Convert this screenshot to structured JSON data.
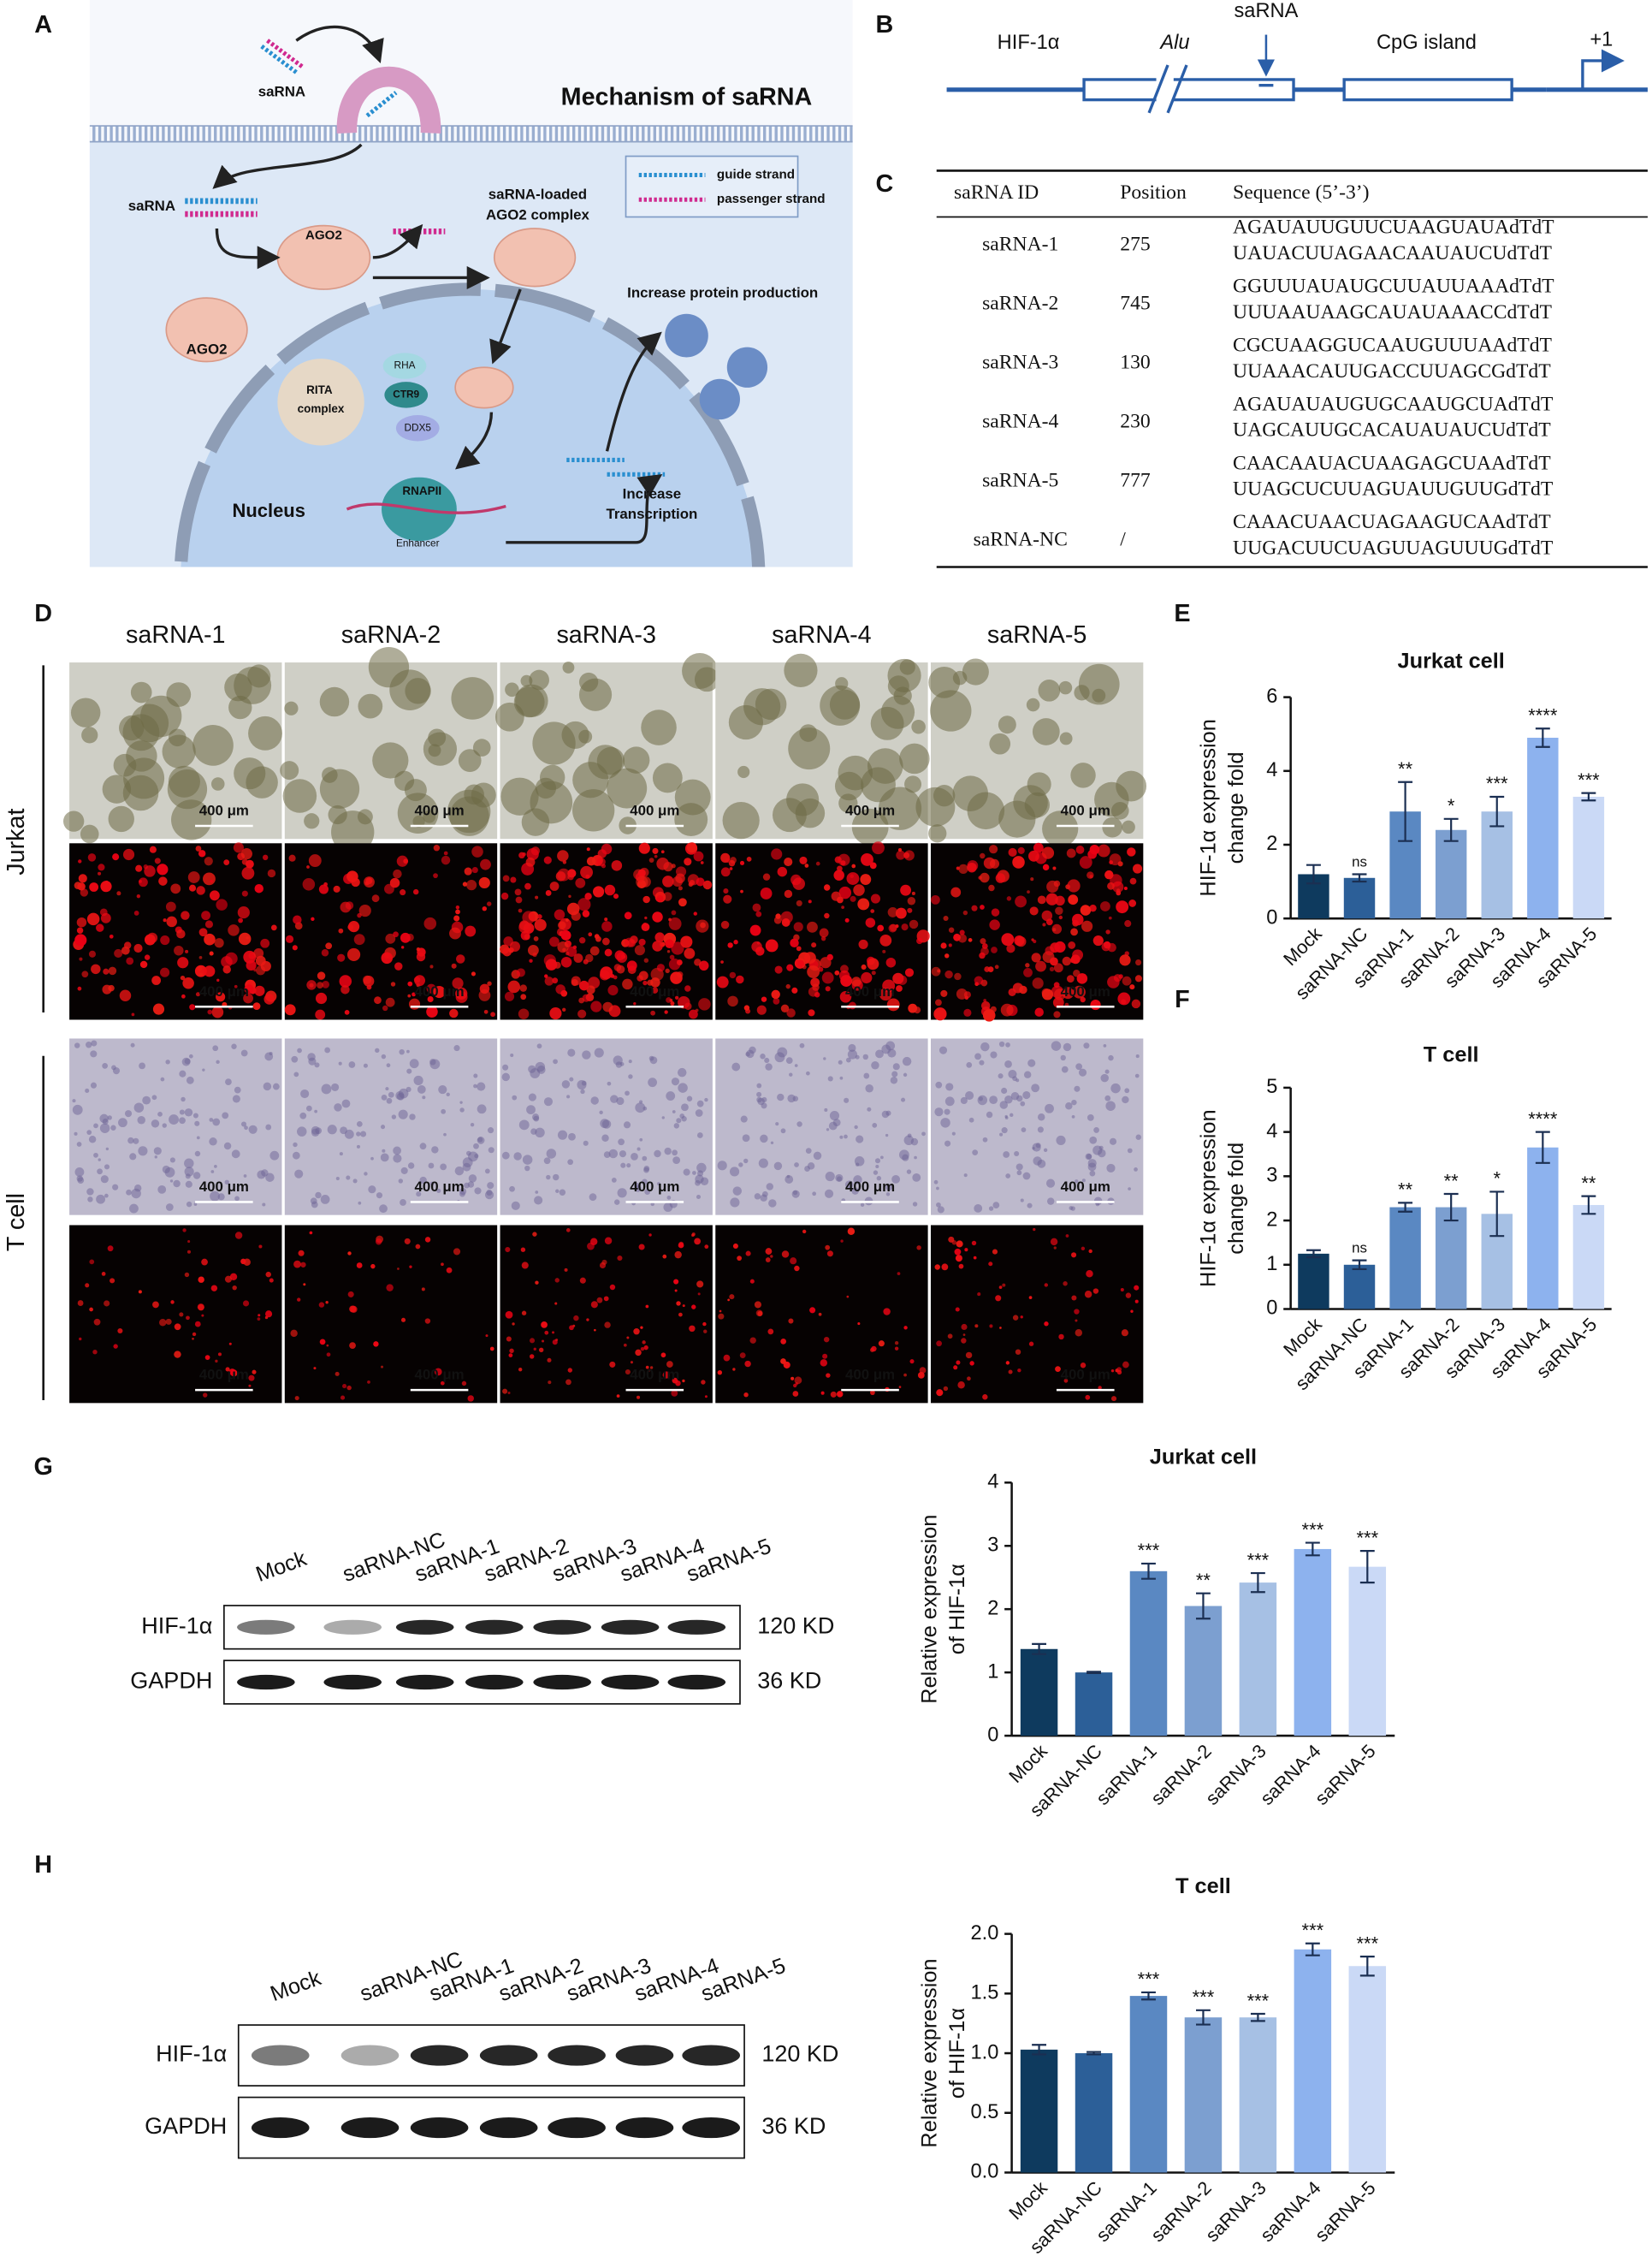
{
  "panel_a": {
    "label": "A",
    "texts": [
      "saRNA",
      "Mechanism of saRNA",
      "guide strand",
      "passenger strand",
      "saRNA",
      "AGO2",
      "saRNA-loaded",
      "AGO2 complex",
      "AGO2",
      "Increase protein production",
      "RHA",
      "RITA",
      "complex",
      "CTR9",
      "DDX5",
      "RNAPII",
      "Enhancer",
      "Increase",
      "Transcription",
      "Nucleus"
    ]
  },
  "panel_b": {
    "label": "B",
    "texts": [
      "HIF-1α",
      "Alu",
      "saRNA",
      "CpG island",
      "+1"
    ]
  },
  "panel_c": {
    "label": "C",
    "header": [
      "saRNA ID",
      "Position",
      "Sequence (5’-3’)"
    ],
    "rows": [
      [
        "saRNA-1",
        "275",
        "AGAUAUUGUUCUAAGUAUAdTdT",
        "UAUACUUAGAACAAUAUCUdTdT"
      ],
      [
        "saRNA-2",
        "745",
        "GGUUUAUAUGCUUAUUAAAdTdT",
        "UUUAAUAAGCAUAUAAACCdTdT"
      ],
      [
        "saRNA-3",
        "130",
        "CGCUAAGGUCAAUGUUUAAdTdT",
        "UUAAACAUUGACCUUAGCGdTdT"
      ],
      [
        "saRNA-4",
        "230",
        "AGAUAUAUGUGCAAUGCUAdTdT",
        "UAGCAUUGCACAUAUAUCUdTdT"
      ],
      [
        "saRNA-5",
        "777",
        "CAACAAUACUAAGAGCUAAdTdT",
        "UUAGCUCUUAGUAUUGUUGdTdT"
      ],
      [
        "saRNA-NC",
        "/",
        "CAAACUAACUAGAAGUCAAdTdT",
        "UUGACUUCUAGUUAGUUUGdTdT"
      ]
    ]
  },
  "panel_d": {
    "label": "D",
    "columns": [
      "saRNA-1",
      "saRNA-2",
      "saRNA-3",
      "saRNA-4",
      "saRNA-5"
    ],
    "rows": [
      "Jurkat",
      "T cell"
    ],
    "scale_bar": "400 μm"
  },
  "panel_g": {
    "label": "G",
    "lanes": [
      "Mock",
      "saRNA-NC",
      "saRNA-1",
      "saRNA-2",
      "saRNA-3",
      "saRNA-4",
      "saRNA-5"
    ],
    "bands": [
      "HIF-1α",
      "GAPDH"
    ],
    "sizes": [
      "120 KD",
      "36 KD"
    ]
  },
  "panel_h": {
    "label": "H",
    "lanes": [
      "Mock",
      "saRNA-NC",
      "saRNA-1",
      "saRNA-2",
      "saRNA-3",
      "saRNA-4",
      "saRNA-5"
    ],
    "bands": [
      "HIF-1α",
      "GAPDH"
    ],
    "sizes": [
      "120 KD",
      "36 KD"
    ]
  },
  "chart_data": [
    {
      "type": "bar",
      "panel": "E",
      "title": "Jurkat cell",
      "ylabel": [
        "HIF-1α expression",
        "change fold"
      ],
      "categories": [
        "Mock",
        "saRNA-NC",
        "saRNA-1",
        "saRNA-2",
        "saRNA-3",
        "saRNA-4",
        "saRNA-5"
      ],
      "values": [
        1.2,
        1.1,
        2.9,
        2.4,
        2.9,
        4.9,
        3.3
      ],
      "errors": [
        0.25,
        0.1,
        0.8,
        0.3,
        0.4,
        0.25,
        0.1
      ],
      "annotations": [
        null,
        "ns",
        "**",
        "*",
        "***",
        "****",
        "***"
      ],
      "colors": [
        "#0e3a5e",
        "#2c5f98",
        "#5a88c2",
        "#7c9fd0",
        "#a6c0e4",
        "#8db2ee",
        "#cad9f6"
      ],
      "ylim": [
        0,
        6
      ],
      "yticks": [
        0,
        2,
        4,
        6
      ]
    },
    {
      "type": "bar",
      "panel": "F",
      "title": "T cell",
      "ylabel": [
        "HIF-1α expression",
        "change fold"
      ],
      "categories": [
        "Mock",
        "saRNA-NC",
        "saRNA-1",
        "saRNA-2",
        "saRNA-3",
        "saRNA-4",
        "saRNA-5"
      ],
      "values": [
        1.25,
        1.0,
        2.3,
        2.3,
        2.15,
        3.65,
        2.35
      ],
      "errors": [
        0.08,
        0.1,
        0.1,
        0.3,
        0.5,
        0.35,
        0.2
      ],
      "annotations": [
        null,
        "ns",
        "**",
        "**",
        "*",
        "****",
        "**"
      ],
      "colors": [
        "#0e3a5e",
        "#2c5f98",
        "#5a88c2",
        "#7c9fd0",
        "#a6c0e4",
        "#8db2ee",
        "#cad9f6"
      ],
      "ylim": [
        0,
        5
      ],
      "yticks": [
        0,
        1,
        2,
        3,
        4,
        5
      ]
    },
    {
      "type": "bar",
      "title": "Jurkat cell",
      "ylabel": [
        "Relative expression",
        "of HIF-1α"
      ],
      "categories": [
        "Mock",
        "saRNA-NC",
        "saRNA-1",
        "saRNA-2",
        "saRNA-3",
        "saRNA-4",
        "saRNA-5"
      ],
      "values": [
        1.37,
        1.0,
        2.6,
        2.05,
        2.42,
        2.95,
        2.67
      ],
      "errors": [
        0.08,
        0.01,
        0.12,
        0.2,
        0.15,
        0.1,
        0.25
      ],
      "annotations": [
        null,
        null,
        "***",
        "**",
        "***",
        "***",
        "***"
      ],
      "colors": [
        "#0e3a5e",
        "#2c5f98",
        "#5a88c2",
        "#7c9fd0",
        "#a6c0e4",
        "#8db2ee",
        "#cad9f6"
      ],
      "ylim": [
        0,
        4
      ],
      "yticks": [
        0,
        1,
        2,
        3,
        4
      ]
    },
    {
      "type": "bar",
      "title": "T cell",
      "ylabel": [
        "Relative expression",
        "of HIF-1α"
      ],
      "categories": [
        "Mock",
        "saRNA-NC",
        "saRNA-1",
        "saRNA-2",
        "saRNA-3",
        "saRNA-4",
        "saRNA-5"
      ],
      "values": [
        1.03,
        1.0,
        1.48,
        1.3,
        1.3,
        1.87,
        1.73
      ],
      "errors": [
        0.04,
        0.01,
        0.03,
        0.06,
        0.03,
        0.05,
        0.08
      ],
      "annotations": [
        null,
        null,
        "***",
        "***",
        "***",
        "***",
        "***"
      ],
      "colors": [
        "#0e3a5e",
        "#2c5f98",
        "#5a88c2",
        "#7c9fd0",
        "#a6c0e4",
        "#8db2ee",
        "#cad9f6"
      ],
      "ylim": [
        0,
        2.0
      ],
      "yticks": [
        {
          "value": 0,
          "label": "0.0"
        },
        {
          "value": 0.5,
          "label": "0.5"
        },
        {
          "value": 1,
          "label": "1.0"
        },
        {
          "value": 1.5,
          "label": "1.5"
        },
        {
          "value": 2,
          "label": "2.0"
        }
      ]
    }
  ]
}
